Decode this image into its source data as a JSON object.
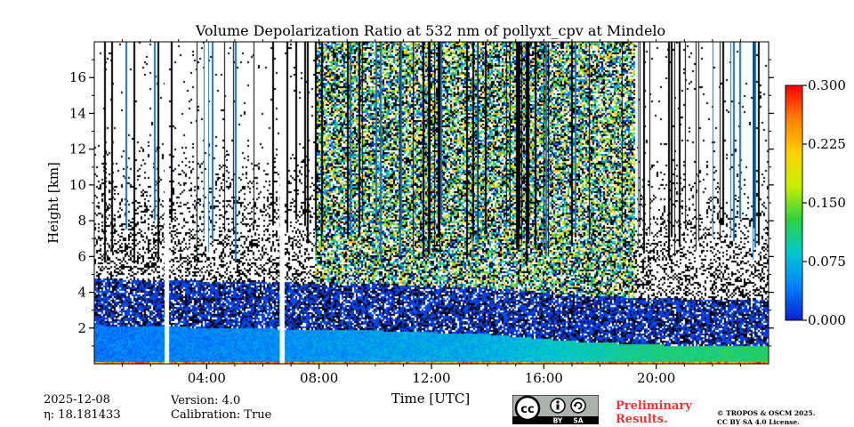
{
  "title": "Volume Depolarization Ratio at 532 nm of pollyxt_cpv at Mindelo",
  "meta": {
    "date": "2025-12-08",
    "eta_label": "η: 18.181433",
    "version": "Version: 4.0",
    "calibration": "Calibration: True"
  },
  "footer": {
    "preliminary_line1": "Preliminary",
    "preliminary_line2": "Results.",
    "copyright_line1": "© TROPOS & OSCM 2025.",
    "copyright_line2": "CC BY SA 4.0 License.",
    "license_badge": {
      "cc": "cc",
      "by": "BY",
      "sa": "SA"
    }
  },
  "chart_data": {
    "type": "heatmap",
    "title": "Volume Depolarization Ratio at 532 nm of pollyxt_cpv at Mindelo",
    "xlabel": "Time [UTC]",
    "ylabel": "Height [km]",
    "xlim_hours": [
      0,
      24
    ],
    "ylim_km": [
      0,
      18
    ],
    "xticks": [
      {
        "hour": 4,
        "label": "04:00"
      },
      {
        "hour": 8,
        "label": "08:00"
      },
      {
        "hour": 12,
        "label": "12:00"
      },
      {
        "hour": 16,
        "label": "16:00"
      },
      {
        "hour": 20,
        "label": "20:00"
      }
    ],
    "yticks": [
      {
        "km": 2,
        "label": "2"
      },
      {
        "km": 4,
        "label": "4"
      },
      {
        "km": 6,
        "label": "6"
      },
      {
        "km": 8,
        "label": "8"
      },
      {
        "km": 10,
        "label": "10"
      },
      {
        "km": 12,
        "label": "12"
      },
      {
        "km": 14,
        "label": "14"
      },
      {
        "km": 16,
        "label": "16"
      }
    ],
    "colorbar": {
      "vmin": 0.0,
      "vmax": 0.3,
      "ticks": [
        {
          "value": 0.0,
          "label": "0.000"
        },
        {
          "value": 0.075,
          "label": "0.075"
        },
        {
          "value": 0.15,
          "label": "0.150"
        },
        {
          "value": 0.225,
          "label": "0.225"
        },
        {
          "value": 0.3,
          "label": "0.300"
        }
      ],
      "colormap": [
        "#0a1fd0",
        "#0080ff",
        "#00c8d0",
        "#30d040",
        "#c8f000",
        "#ffd000",
        "#ff8000",
        "#ff0000"
      ]
    },
    "no_data_gaps_hours": [
      [
        2.5,
        2.65
      ],
      [
        6.6,
        6.72
      ]
    ],
    "boundary_layer": [
      {
        "hour": 0,
        "top_km": 2.2,
        "value": 0.04
      },
      {
        "hour": 6,
        "top_km": 2.0,
        "value": 0.05
      },
      {
        "hour": 10,
        "top_km": 1.9,
        "value": 0.06
      },
      {
        "hour": 14,
        "top_km": 1.7,
        "value": 0.07
      },
      {
        "hour": 17,
        "top_km": 1.3,
        "value": 0.09
      },
      {
        "hour": 20,
        "top_km": 1.1,
        "value": 0.11
      },
      {
        "hour": 24,
        "top_km": 1.0,
        "value": 0.12
      }
    ],
    "noisy_daytime_hours": [
      7.8,
      19.2
    ]
  }
}
